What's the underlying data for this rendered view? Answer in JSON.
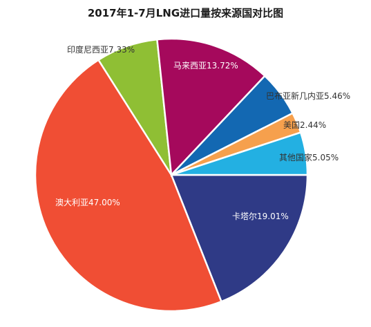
{
  "chart_data": {
    "type": "pie",
    "title": "2017年1-7月LNG进口量按来源国对比图",
    "slices": [
      {
        "name": "卡塔尔",
        "label": "卡塔尔19.01%",
        "value": 19.01,
        "color": "#2f3a86"
      },
      {
        "name": "澳大利亚",
        "label": "澳大利亚47.00%",
        "value": 47.0,
        "color": "#f04e34"
      },
      {
        "name": "印度尼西亚",
        "label": "印度尼西亚7.33%",
        "value": 7.33,
        "color": "#8fbf34"
      },
      {
        "name": "马来西亚",
        "label": "马来西亚13.72%",
        "value": 13.72,
        "color": "#a5095c"
      },
      {
        "name": "巴布亚新几内亚",
        "label": "巴布亚新几内亚5.46%",
        "value": 5.46,
        "color": "#1368b2"
      },
      {
        "name": "美国",
        "label": "美国2.44%",
        "value": 2.44,
        "color": "#f6a04d"
      },
      {
        "name": "其他国家",
        "label": "其他国家5.05%",
        "value": 5.05,
        "color": "#23b0e2"
      }
    ],
    "label_color_inside": "#ffffff",
    "label_color_outside": "#333333"
  }
}
